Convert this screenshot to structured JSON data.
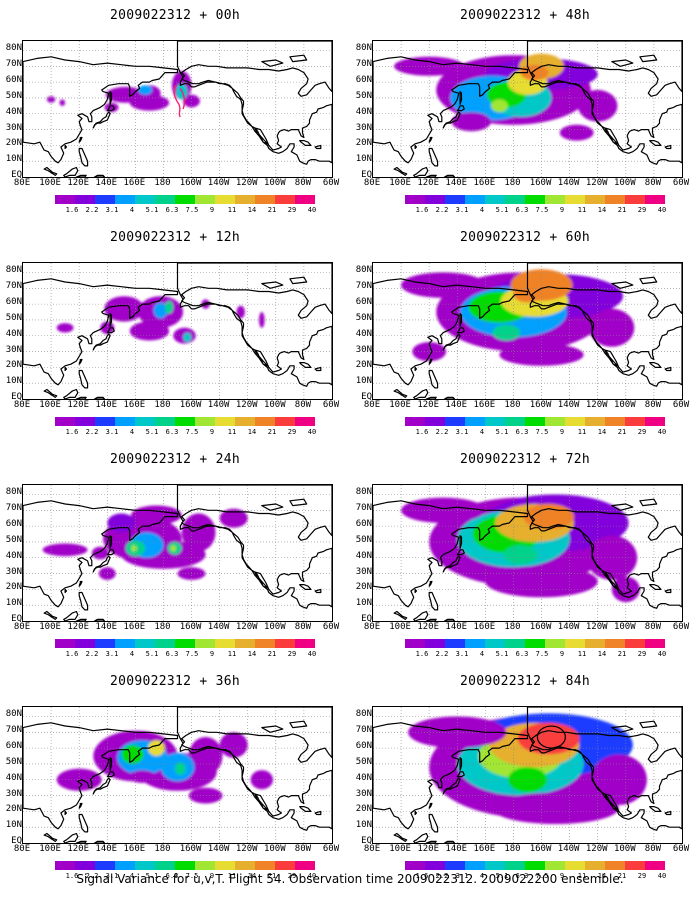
{
  "footer_caption": "Signal Variance for u,v,T. Flight 54. Observation time 2009022312. 2009022200 ensemble.",
  "lat_labels": [
    "80N",
    "70N",
    "60N",
    "50N",
    "40N",
    "30N",
    "20N",
    "10N",
    "EQ"
  ],
  "lon_labels": [
    "80E",
    "100E",
    "120E",
    "140E",
    "160E",
    "180",
    "160W",
    "140W",
    "120W",
    "100W",
    "80W",
    "60W"
  ],
  "colorbar": {
    "labels": [
      "1.6",
      "2.2",
      "3.1",
      "4",
      "5.1",
      "6.3",
      "7.5",
      "9",
      "11",
      "14",
      "21",
      "29",
      "40"
    ],
    "colors": [
      "#a000c8",
      "#8200dc",
      "#1e3cff",
      "#00a0ff",
      "#00c8c8",
      "#00d28c",
      "#00dc00",
      "#a0e632",
      "#e6dc32",
      "#e6af2d",
      "#f08228",
      "#fa3c3c",
      "#f00082"
    ]
  },
  "panels": [
    {
      "title": "2009022312 + 00h",
      "forecast_hour": 0
    },
    {
      "title": "2009022312 + 48h",
      "forecast_hour": 48
    },
    {
      "title": "2009022312 + 12h",
      "forecast_hour": 12
    },
    {
      "title": "2009022312 + 60h",
      "forecast_hour": 60
    },
    {
      "title": "2009022312 + 24h",
      "forecast_hour": 24
    },
    {
      "title": "2009022312 + 72h",
      "forecast_hour": 72
    },
    {
      "title": "2009022312 + 36h",
      "forecast_hour": 36
    },
    {
      "title": "2009022312 + 84h",
      "forecast_hour": 84
    }
  ]
}
